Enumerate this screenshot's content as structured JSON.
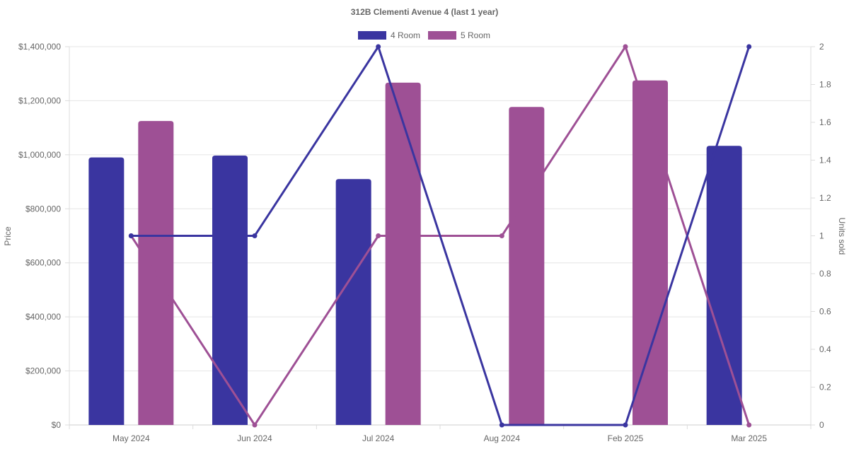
{
  "chart_data": {
    "type": "bar",
    "title": "312B Clementi Avenue 4 (last 1 year)",
    "categories": [
      "May 2024",
      "Jun 2024",
      "Jul 2024",
      "Aug 2024",
      "Feb 2025",
      "Mar 2025"
    ],
    "ylabel": "Price",
    "y2label": "Units sold",
    "ylim": [
      0,
      1400000
    ],
    "y2lim": [
      0,
      2
    ],
    "yticks": [
      "$0",
      "$200,000",
      "$400,000",
      "$600,000",
      "$800,000",
      "$1,000,000",
      "$1,200,000",
      "$1,400,000"
    ],
    "y2ticks": [
      "0",
      "0.2",
      "0.4",
      "0.6",
      "0.8",
      "1",
      "1.2",
      "1.4",
      "1.6",
      "1.8",
      "2"
    ],
    "grid": true,
    "legend_position": "top-center",
    "series": [
      {
        "name": "4 Room",
        "color": "#3a35a0",
        "bar_values": [
          990000,
          997000,
          null,
          null,
          null,
          1033000
        ],
        "bar_values_full": [
          990000,
          997000,
          910000,
          null,
          null,
          1033000
        ],
        "units_sold": [
          1,
          1,
          2,
          0,
          0,
          2
        ]
      },
      {
        "name": "5 Room",
        "color": "#9e5095",
        "bar_values": [
          1125000,
          null,
          1267000,
          1177000,
          1275000,
          null
        ],
        "units_sold": [
          1,
          0,
          1,
          1,
          2,
          0
        ]
      }
    ]
  }
}
